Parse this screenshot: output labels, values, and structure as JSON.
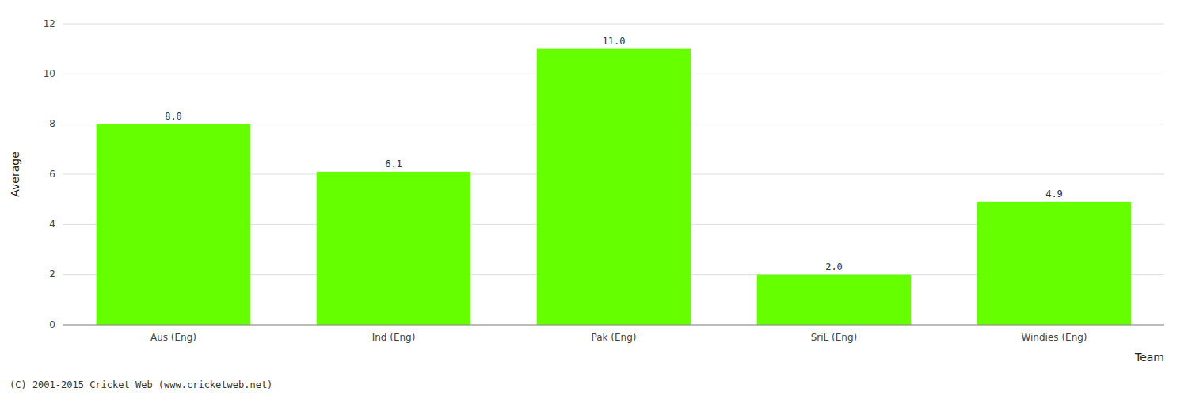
{
  "chart_data": {
    "type": "bar",
    "categories": [
      "Aus (Eng)",
      "Ind (Eng)",
      "Pak (Eng)",
      "SriL (Eng)",
      "Windies (Eng)"
    ],
    "values": [
      8.0,
      6.1,
      11.0,
      2.0,
      4.9
    ],
    "value_labels": [
      "8.0",
      "6.1",
      "11.0",
      "2.0",
      "4.9"
    ],
    "data_labels": true,
    "color": "#66ff00",
    "xlabel": "Team",
    "ylabel": "Average",
    "ylim": [
      0,
      12
    ],
    "yticks": [
      0,
      2,
      4,
      6,
      8,
      10,
      12
    ],
    "grid": true,
    "footer": "(C) 2001-2015 Cricket Web (www.cricketweb.net)"
  }
}
